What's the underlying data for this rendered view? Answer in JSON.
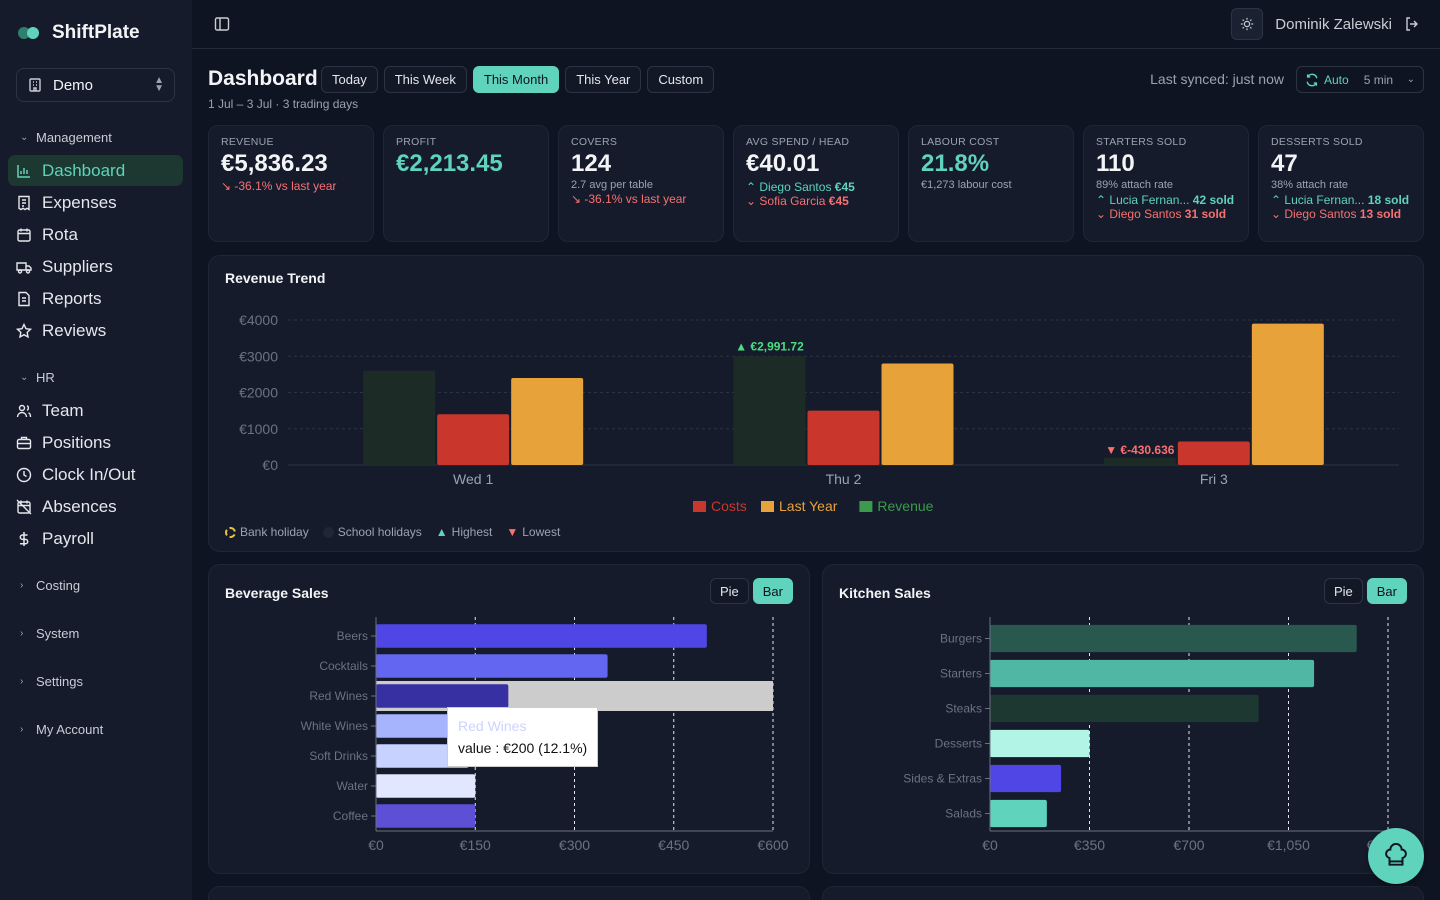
{
  "app": {
    "name": "ShiftPlate",
    "org": "Demo"
  },
  "sidebar": {
    "sections": {
      "management": "Management",
      "hr": "HR",
      "costing": "Costing",
      "system": "System",
      "settings": "Settings",
      "account": "My Account"
    },
    "management_items": [
      "Dashboard",
      "Expenses",
      "Rota",
      "Suppliers",
      "Reports",
      "Reviews"
    ],
    "hr_items": [
      "Team",
      "Positions",
      "Clock In/Out",
      "Absences",
      "Payroll"
    ]
  },
  "header": {
    "user": "Dominik Zalewski"
  },
  "page": {
    "title": "Dashboard",
    "range": "1 Jul – 3 Jul · 3 trading days",
    "periods": [
      "Today",
      "This Week",
      "This Month",
      "This Year",
      "Custom"
    ],
    "active_period": "This Month",
    "sync": "Last synced: just now",
    "auto": "Auto",
    "auto_interval": "5 min"
  },
  "kpis": {
    "revenue": {
      "label": "REVENUE",
      "value": "€5,836.23",
      "change": "↘ -36.1% vs last year"
    },
    "profit": {
      "label": "PROFIT",
      "value": "€2,213.45"
    },
    "covers": {
      "label": "COVERS",
      "value": "124",
      "sub": "2.7 avg per table",
      "change": "↘ -36.1% vs last year"
    },
    "avg_spend": {
      "label": "AVG SPEND / HEAD",
      "value": "€40.01",
      "top_name": "Diego Santos",
      "top_val": "€45",
      "low_name": "Sofia Garcia",
      "low_val": "€45"
    },
    "labour": {
      "label": "LABOUR COST",
      "value": "21.8%",
      "sub": "€1,273 labour cost"
    },
    "starters": {
      "label": "STARTERS SOLD",
      "value": "110",
      "sub": "89% attach rate",
      "top_name": "Lucia Fernan...",
      "top_val": "42 sold",
      "low_name": "Diego Santos",
      "low_val": "31 sold"
    },
    "desserts": {
      "label": "DESSERTS SOLD",
      "value": "47",
      "sub": "38% attach rate",
      "top_name": "Lucia Fernan...",
      "top_val": "18 sold",
      "low_name": "Diego Santos",
      "low_val": "13 sold"
    }
  },
  "revenue_trend": {
    "title": "Revenue Trend",
    "highest_label": "▲ €2,991.72",
    "lowest_label": "▼ €-430.636",
    "legend_bottom": [
      "Bank holiday",
      "School holidays",
      "Highest",
      "Lowest"
    ]
  },
  "beverage": {
    "title": "Beverage Sales",
    "pie": "Pie",
    "bar": "Bar",
    "tooltip_title": "Red Wines",
    "tooltip_value": "value : €200 (12.1%)"
  },
  "kitchen": {
    "title": "Kitchen Sales",
    "pie": "Pie",
    "bar": "Bar"
  },
  "chart_data": [
    {
      "type": "bar",
      "title": "Revenue Trend",
      "categories": [
        "Wed 1",
        "Thu 2",
        "Fri 3"
      ],
      "series": [
        {
          "name": "Revenue",
          "color": "#1c2b26",
          "values": [
            2600,
            3000,
            200
          ]
        },
        {
          "name": "Costs",
          "color": "#c9372c",
          "values": [
            1400,
            1500,
            650
          ]
        },
        {
          "name": "Last Year",
          "color": "#e8a23a",
          "values": [
            2400,
            2800,
            3900
          ]
        }
      ],
      "y_ticks": [
        "€0",
        "€1000",
        "€2000",
        "€3000",
        "€4000"
      ],
      "ylim": [
        0,
        4000
      ],
      "legend": [
        "Costs",
        "Last Year",
        "Revenue"
      ],
      "legend_colors": [
        "#c9372c",
        "#e8a23a",
        "#3b9a4b"
      ]
    },
    {
      "type": "bar",
      "orientation": "horizontal",
      "title": "Beverage Sales",
      "categories": [
        "Beers",
        "Cocktails",
        "Red Wines",
        "White Wines",
        "Soft Drinks",
        "Water",
        "Coffee"
      ],
      "values": [
        500,
        350,
        200,
        150,
        140,
        150,
        150
      ],
      "colors": [
        "#4f46e5",
        "#6366f1",
        "#3730a3",
        "#a5b4fc",
        "#c7d2fe",
        "#e0e7ff",
        "#5b50d6"
      ],
      "x_ticks": [
        "€0",
        "€150",
        "€300",
        "€450",
        "€600"
      ],
      "xlim": [
        0,
        600
      ]
    },
    {
      "type": "bar",
      "orientation": "horizontal",
      "title": "Kitchen Sales",
      "categories": [
        "Burgers",
        "Starters",
        "Steaks",
        "Desserts",
        "Sides & Extras",
        "Salads"
      ],
      "values": [
        1290,
        1140,
        945,
        350,
        250,
        200
      ],
      "colors": [
        "#28584e",
        "#4fb7a3",
        "#1c3830",
        "#b2f5e6",
        "#4f46e5",
        "#5fd3bb"
      ],
      "x_ticks": [
        "€0",
        "€350",
        "€700",
        "€1,050",
        "€1,400"
      ],
      "xlim": [
        0,
        1400
      ]
    }
  ]
}
